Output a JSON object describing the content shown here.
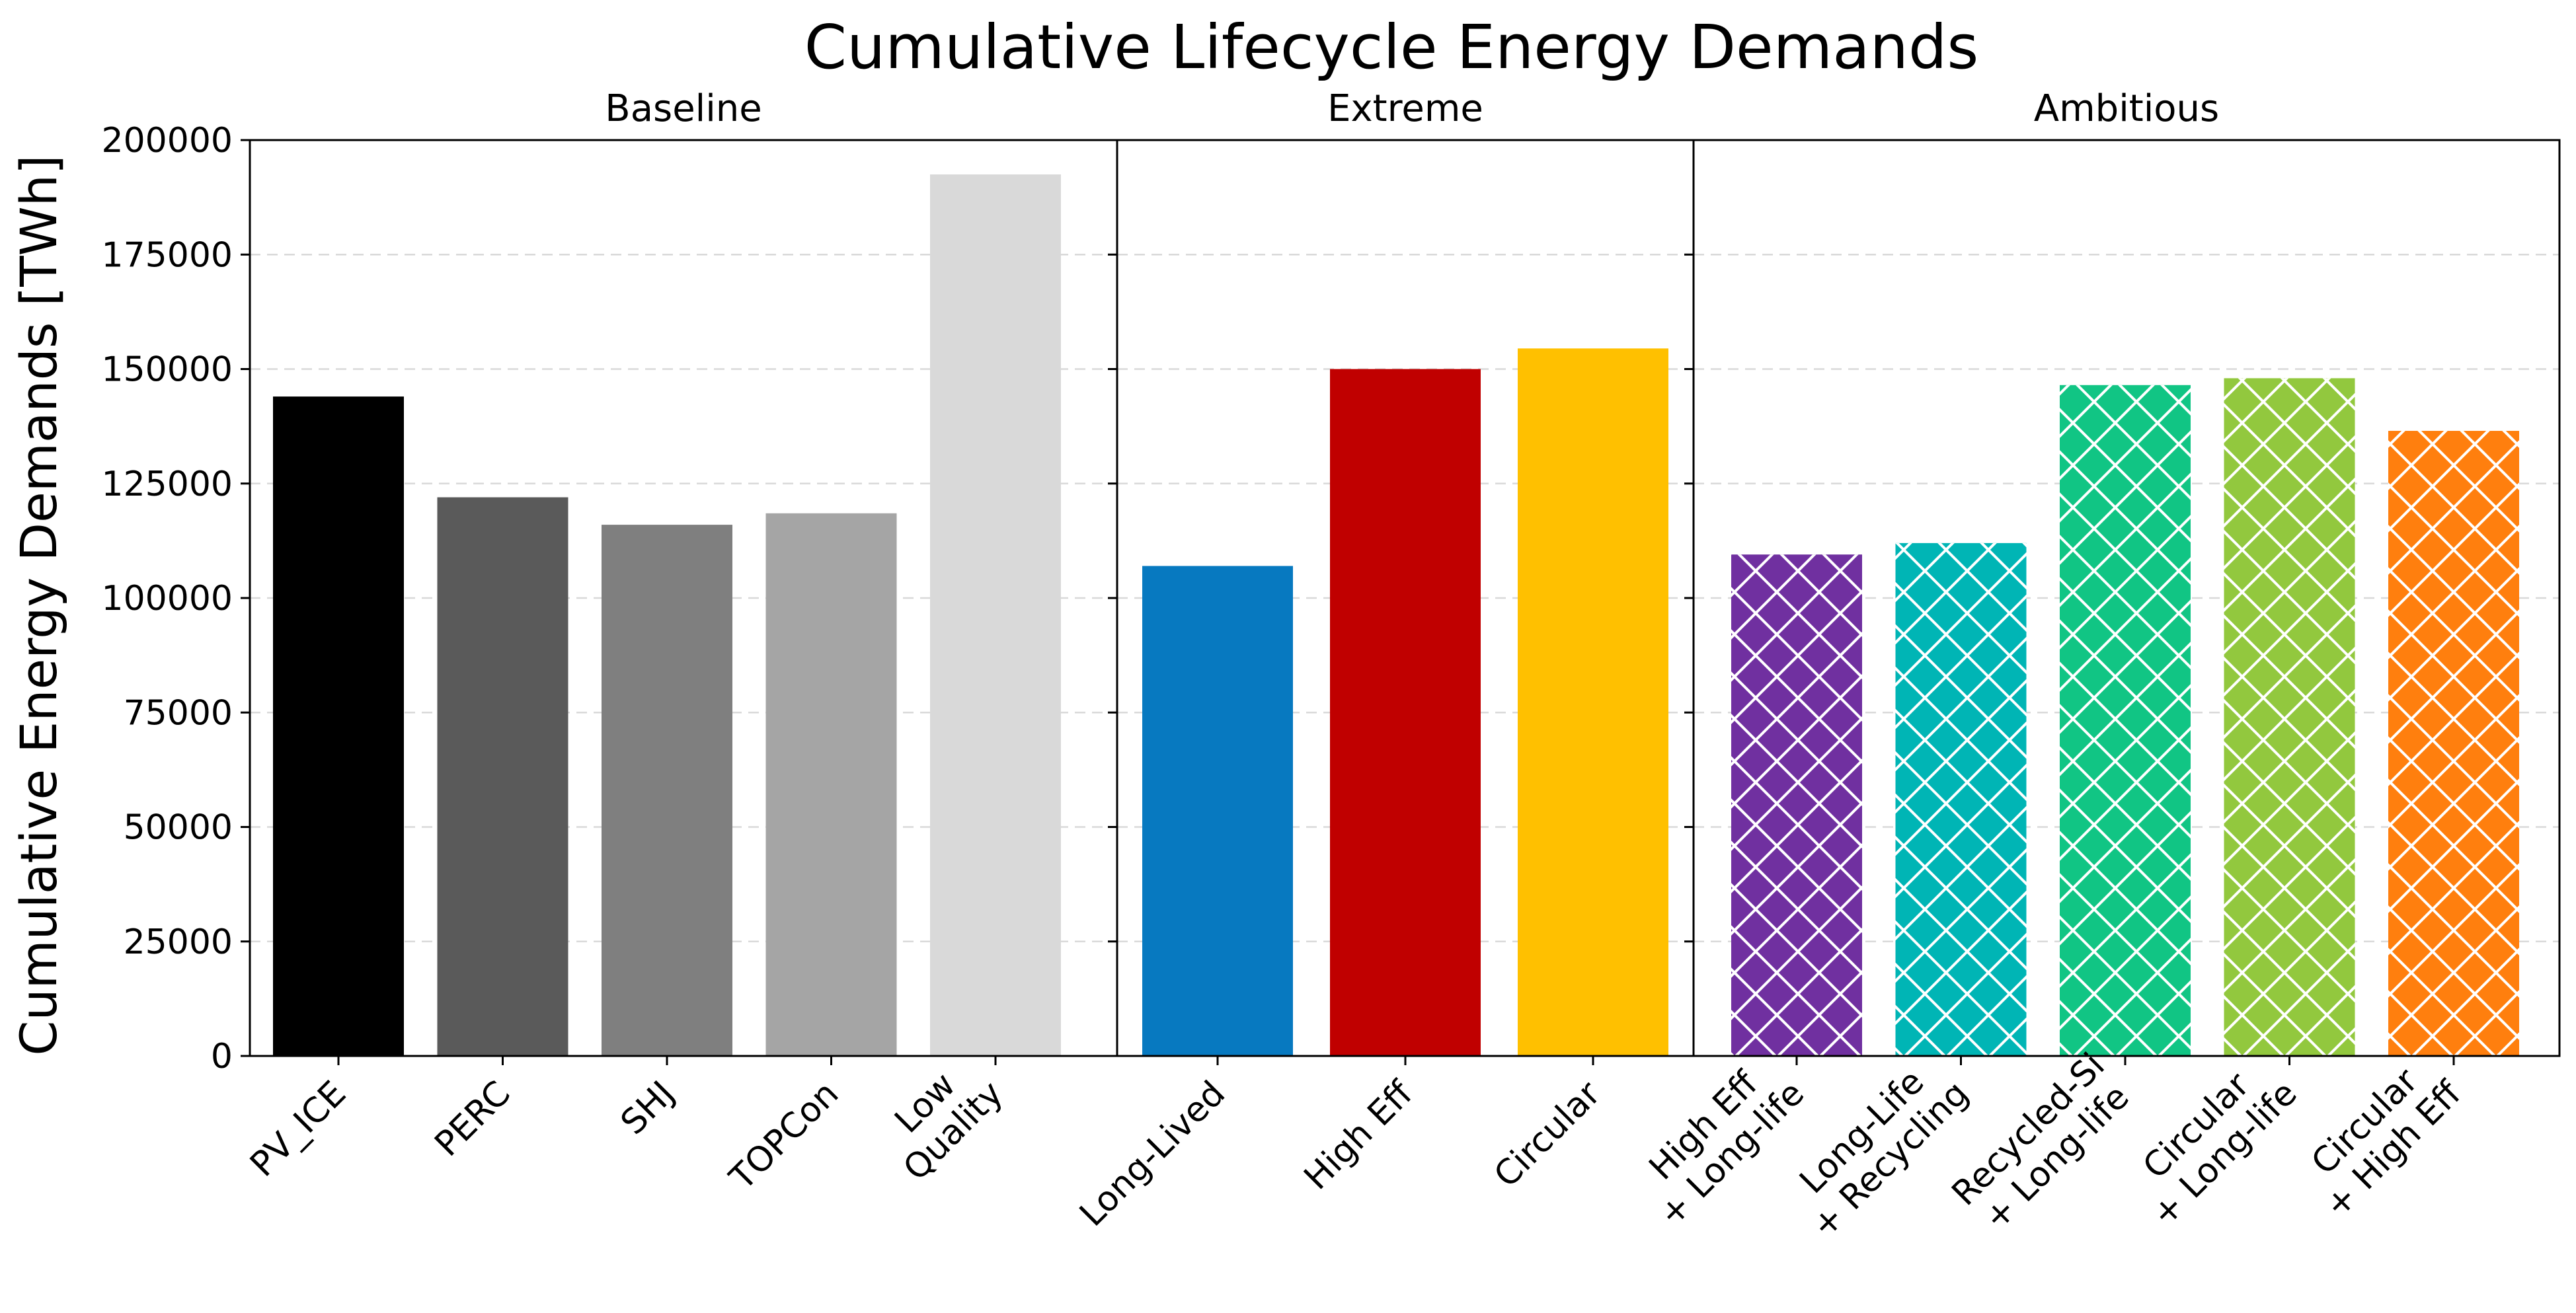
{
  "chart_data": {
    "type": "bar",
    "title": "Cumulative Lifecycle Energy Demands",
    "ylabel": "Cumulative Energy Demands [TWh]",
    "xlabel": "",
    "ylim": [
      0,
      200000
    ],
    "yticks": [
      "0",
      "25000",
      "50000",
      "75000",
      "100000",
      "125000",
      "150000",
      "175000",
      "200000"
    ],
    "grid": "horizontal dashed",
    "panels": [
      {
        "title": "Baseline",
        "bars": [
          {
            "label": [
              "PV_ICE"
            ],
            "value": 144000,
            "color": "#000000",
            "hatch": false
          },
          {
            "label": [
              "PERC"
            ],
            "value": 122000,
            "color": "#5a5a5a",
            "hatch": false
          },
          {
            "label": [
              "SHJ"
            ],
            "value": 116000,
            "color": "#7f7f7f",
            "hatch": false
          },
          {
            "label": [
              "TOPCon"
            ],
            "value": 118500,
            "color": "#a5a5a5",
            "hatch": false
          },
          {
            "label": [
              "Low",
              "Quality"
            ],
            "value": 192500,
            "color": "#d9d9d9",
            "hatch": false
          }
        ]
      },
      {
        "title": "Extreme",
        "bars": [
          {
            "label": [
              "Long-Lived"
            ],
            "value": 107000,
            "color": "#0779c0",
            "hatch": false
          },
          {
            "label": [
              "High Eff"
            ],
            "value": 150000,
            "color": "#c00000",
            "hatch": false
          },
          {
            "label": [
              "Circular"
            ],
            "value": 154500,
            "color": "#ffc000",
            "hatch": false
          }
        ]
      },
      {
        "title": "Ambitious",
        "bars": [
          {
            "label": [
              "High Eff",
              "+ Long-life"
            ],
            "value": 109500,
            "color": "#7030a0",
            "hatch": true
          },
          {
            "label": [
              "Long-Life",
              "+ Recycling"
            ],
            "value": 112000,
            "color": "#00b5b5",
            "hatch": true
          },
          {
            "label": [
              "Recycled-Si",
              "+ Long-life"
            ],
            "value": 146500,
            "color": "#11c584",
            "hatch": true
          },
          {
            "label": [
              "Circular",
              "+ Long-life"
            ],
            "value": 148000,
            "color": "#92c83e",
            "hatch": true
          },
          {
            "label": [
              "Circular",
              "+ High Eff"
            ],
            "value": 136500,
            "color": "#ff7f0e",
            "hatch": true
          }
        ]
      }
    ]
  }
}
